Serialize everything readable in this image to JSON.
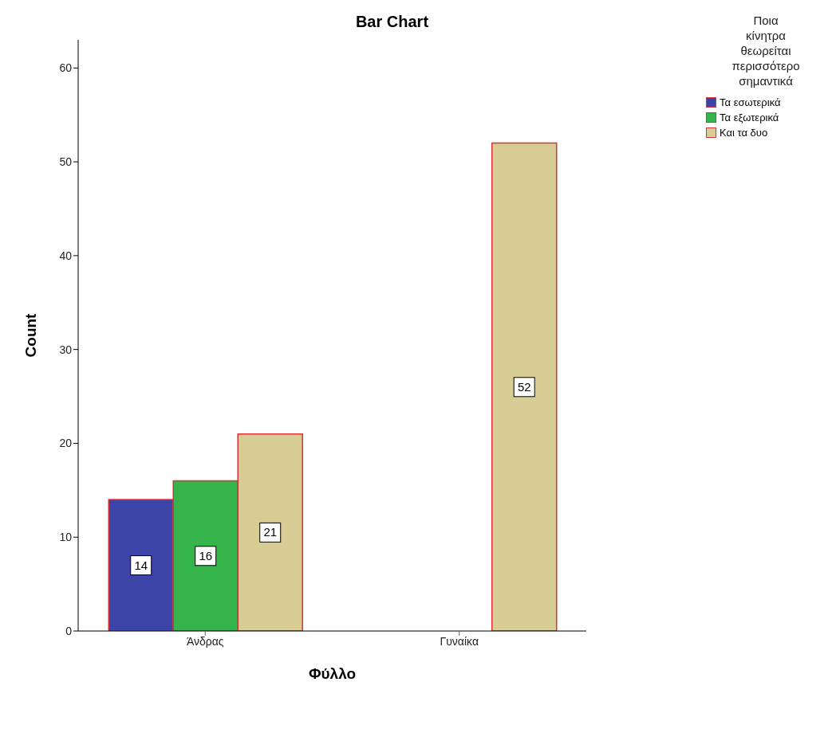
{
  "chart_data": {
    "type": "bar",
    "title": "Bar Chart",
    "xlabel": "Φύλλο",
    "ylabel": "Count",
    "legend_title": "Ποια κίνητρα θεωρείται περισσότερο σημαντικά",
    "categories": [
      "Άνδρας",
      "Γυναίκα"
    ],
    "series": [
      {
        "name": "Τα εσωτερικά",
        "color": "#3c44a8",
        "values": [
          14,
          null
        ]
      },
      {
        "name": "Τα εξωτερικά",
        "color": "#34b44a",
        "values": [
          16,
          null
        ]
      },
      {
        "name": "Και τα δυο",
        "color": "#d6cc94",
        "values": [
          21,
          52
        ]
      }
    ],
    "ylim": [
      0,
      63
    ],
    "yticks": [
      0,
      10,
      20,
      30,
      40,
      50,
      60
    ],
    "data_labels": true,
    "legend": "right",
    "grid": false
  }
}
